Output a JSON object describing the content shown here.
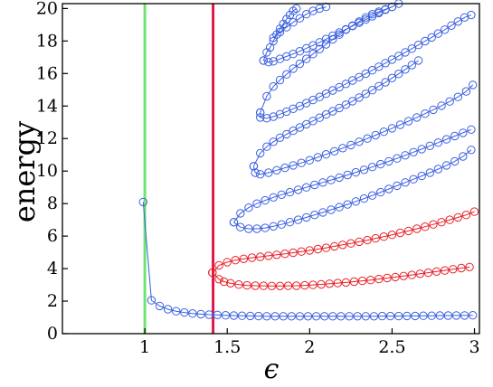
{
  "chart_data": {
    "type": "line",
    "xlabel": "ϵ",
    "ylabel": "energy",
    "xlim": [
      0.5,
      3.03
    ],
    "ylim": [
      0,
      20.3
    ],
    "x_ticks": [
      1,
      1.5,
      2,
      2.5,
      3
    ],
    "x_tick_labels": [
      "1",
      "1.5",
      "2",
      "2.5",
      "3"
    ],
    "y_ticks": [
      0,
      2,
      4,
      6,
      8,
      10,
      12,
      14,
      16,
      18,
      20
    ],
    "y_tick_labels": [
      "0",
      "2",
      "4",
      "6",
      "8",
      "10",
      "12",
      "14",
      "16",
      "18",
      "20"
    ],
    "grid": false,
    "legend": "none",
    "colors": {
      "blue": "#3b5fe0",
      "red": "#e8202a",
      "green": "#6fe36f",
      "crimson": "#e0184a"
    },
    "vertical_lines": [
      {
        "x": 1.0,
        "color": "#6fe36f"
      },
      {
        "x": 1.414,
        "color": "#e0184a"
      }
    ],
    "series": [
      {
        "color": "#3b5fe0",
        "x": [
          0.99,
          1.04,
          1.09,
          1.14,
          1.19,
          1.24,
          1.29,
          1.34,
          1.39,
          1.44,
          1.49,
          1.54,
          1.59,
          1.64,
          1.69,
          1.74,
          1.79,
          1.84,
          1.89,
          1.94,
          1.99,
          2.04,
          2.09,
          2.14,
          2.19,
          2.24,
          2.29,
          2.34,
          2.39,
          2.44,
          2.49,
          2.54,
          2.59,
          2.64,
          2.69,
          2.74,
          2.79,
          2.84,
          2.89,
          2.94,
          2.99
        ],
        "y": [
          8.1,
          2.05,
          1.7,
          1.5,
          1.38,
          1.3,
          1.24,
          1.2,
          1.17,
          1.15,
          1.13,
          1.11,
          1.1,
          1.09,
          1.08,
          1.07,
          1.07,
          1.07,
          1.07,
          1.07,
          1.07,
          1.07,
          1.07,
          1.07,
          1.07,
          1.07,
          1.07,
          1.07,
          1.07,
          1.08,
          1.08,
          1.08,
          1.09,
          1.09,
          1.1,
          1.1,
          1.11,
          1.11,
          1.12,
          1.12,
          1.13
        ]
      },
      {
        "color": "#e8202a",
        "x": [
          1.41,
          1.45,
          1.48,
          1.52,
          1.57,
          1.62,
          1.67,
          1.72,
          1.77,
          1.82,
          1.87,
          1.92,
          1.97,
          2.02,
          2.07,
          2.12,
          2.17,
          2.22,
          2.27,
          2.32,
          2.37,
          2.42,
          2.47,
          2.52,
          2.57,
          2.62,
          2.67,
          2.72,
          2.77,
          2.82,
          2.87,
          2.92,
          2.97
        ],
        "y": [
          3.75,
          3.35,
          3.2,
          3.1,
          3.02,
          2.97,
          2.95,
          2.94,
          2.93,
          2.93,
          2.94,
          2.95,
          2.97,
          3.0,
          3.03,
          3.07,
          3.11,
          3.15,
          3.2,
          3.25,
          3.3,
          3.36,
          3.42,
          3.48,
          3.54,
          3.61,
          3.68,
          3.75,
          3.82,
          3.89,
          3.96,
          4.03,
          4.1
        ]
      },
      {
        "color": "#e8202a",
        "x": [
          1.41,
          1.45,
          1.5,
          1.55,
          1.6,
          1.65,
          1.7,
          1.75,
          1.8,
          1.85,
          1.9,
          1.95,
          2.0,
          2.05,
          2.1,
          2.15,
          2.2,
          2.25,
          2.3,
          2.35,
          2.4,
          2.45,
          2.5,
          2.55,
          2.6,
          2.65,
          2.7,
          2.75,
          2.8,
          2.85,
          2.9,
          2.95,
          3.0
        ],
        "y": [
          3.75,
          4.2,
          4.4,
          4.52,
          4.6,
          4.67,
          4.73,
          4.79,
          4.85,
          4.91,
          4.98,
          5.05,
          5.12,
          5.2,
          5.28,
          5.37,
          5.46,
          5.55,
          5.65,
          5.75,
          5.86,
          5.97,
          6.08,
          6.2,
          6.32,
          6.45,
          6.58,
          6.72,
          6.86,
          7.0,
          7.15,
          7.3,
          7.5
        ]
      },
      {
        "color": "#3b5fe0",
        "x": [
          1.54,
          1.58,
          1.63,
          1.68,
          1.73,
          1.78,
          1.83,
          1.88,
          1.93,
          1.98,
          2.03,
          2.08,
          2.13,
          2.18,
          2.23,
          2.28,
          2.33,
          2.38,
          2.43,
          2.48,
          2.53,
          2.58,
          2.63,
          2.68,
          2.73,
          2.78,
          2.83,
          2.88,
          2.93,
          2.98
        ],
        "y": [
          6.85,
          6.55,
          6.45,
          6.45,
          6.5,
          6.6,
          6.72,
          6.86,
          7.0,
          7.15,
          7.3,
          7.46,
          7.62,
          7.78,
          7.95,
          8.13,
          8.31,
          8.5,
          8.7,
          8.9,
          9.1,
          9.3,
          9.5,
          9.7,
          9.9,
          10.12,
          10.35,
          10.6,
          10.9,
          11.3
        ]
      },
      {
        "color": "#3b5fe0",
        "x": [
          1.54,
          1.58,
          1.63,
          1.68,
          1.73,
          1.78,
          1.83,
          1.88,
          1.93,
          1.98,
          2.03,
          2.08,
          2.13,
          2.18,
          2.23,
          2.28,
          2.33,
          2.38,
          2.43,
          2.48,
          2.53,
          2.58,
          2.63,
          2.68,
          2.73,
          2.78,
          2.83,
          2.88,
          2.93,
          2.98
        ],
        "y": [
          6.85,
          7.4,
          7.75,
          8.0,
          8.2,
          8.38,
          8.55,
          8.7,
          8.85,
          9.0,
          9.15,
          9.3,
          9.45,
          9.6,
          9.76,
          9.92,
          10.08,
          10.25,
          10.42,
          10.6,
          10.78,
          10.97,
          11.16,
          11.35,
          11.55,
          11.75,
          11.95,
          12.15,
          12.35,
          12.55
        ]
      },
      {
        "color": "#3b5fe0",
        "x": [
          1.66,
          1.67,
          1.7,
          1.75,
          1.8,
          1.85,
          1.9,
          1.95,
          2.0,
          2.05,
          2.1,
          2.15,
          2.2,
          2.25,
          2.3,
          2.35,
          2.4,
          2.45,
          2.5,
          2.55,
          2.6,
          2.65,
          2.7,
          2.75,
          2.8,
          2.85,
          2.9,
          2.95,
          2.99
        ],
        "y": [
          10.3,
          9.9,
          9.8,
          9.9,
          10.05,
          10.2,
          10.35,
          10.5,
          10.67,
          10.85,
          11.03,
          11.22,
          11.41,
          11.6,
          11.8,
          12.0,
          12.21,
          12.42,
          12.63,
          12.85,
          13.07,
          13.3,
          13.53,
          13.77,
          14.02,
          14.28,
          14.56,
          14.9,
          15.3
        ]
      },
      {
        "color": "#3b5fe0",
        "x": [
          1.66,
          1.7,
          1.74,
          1.78,
          1.82,
          1.86,
          1.9,
          1.94,
          1.98,
          2.02,
          2.06,
          2.1,
          2.14,
          2.18,
          2.22,
          2.26,
          2.3,
          2.34,
          2.38,
          2.42,
          2.46,
          2.5,
          2.54,
          2.58,
          2.62,
          2.66
        ],
        "y": [
          10.3,
          11.1,
          11.5,
          11.8,
          12.05,
          12.27,
          12.48,
          12.68,
          12.88,
          13.08,
          13.28,
          13.48,
          13.68,
          13.88,
          14.08,
          14.3,
          14.52,
          14.75,
          14.98,
          15.22,
          15.46,
          15.72,
          15.98,
          16.25,
          16.52,
          16.8
        ]
      },
      {
        "color": "#3b5fe0",
        "x": [
          1.7,
          1.7,
          1.74,
          1.78,
          1.82,
          1.86,
          1.9,
          1.94,
          1.98,
          2.02,
          2.06,
          2.1,
          2.14,
          2.18,
          2.22,
          2.26,
          2.3,
          2.34,
          2.38,
          2.42,
          2.46,
          2.5,
          2.54,
          2.58,
          2.62,
          2.66,
          2.7,
          2.74,
          2.78,
          2.82,
          2.86,
          2.9,
          2.94,
          2.98
        ],
        "y": [
          13.6,
          13.3,
          13.25,
          13.35,
          13.5,
          13.66,
          13.83,
          14.0,
          14.18,
          14.37,
          14.56,
          14.76,
          14.96,
          15.16,
          15.36,
          15.57,
          15.78,
          15.99,
          16.2,
          16.42,
          16.64,
          16.86,
          17.08,
          17.3,
          17.53,
          17.76,
          17.99,
          18.22,
          18.46,
          18.7,
          18.95,
          19.2,
          19.45,
          19.6
        ]
      },
      {
        "color": "#3b5fe0",
        "x": [
          1.7,
          1.74,
          1.78,
          1.82,
          1.86,
          1.9,
          1.94,
          1.98,
          2.02,
          2.06,
          2.1,
          2.14,
          2.18,
          2.22,
          2.26,
          2.3,
          2.34,
          2.38,
          2.42,
          2.46,
          2.5
        ],
        "y": [
          13.6,
          14.6,
          15.2,
          15.6,
          15.95,
          16.3,
          16.6,
          16.9,
          17.2,
          17.5,
          17.8,
          18.1,
          18.4,
          18.7,
          18.95,
          19.2,
          19.45,
          19.65,
          19.8,
          19.95,
          20.1
        ]
      },
      {
        "color": "#3b5fe0",
        "x": [
          1.72,
          1.75,
          1.78,
          1.82,
          1.86,
          1.9,
          1.94,
          1.98,
          2.02,
          2.06,
          2.1,
          2.14,
          2.18,
          2.22,
          2.26,
          2.3,
          2.34,
          2.38,
          2.42,
          2.46,
          2.5,
          2.54,
          2.58,
          2.62,
          2.66,
          2.7
        ],
        "y": [
          16.8,
          16.7,
          16.75,
          16.9,
          17.05,
          17.2,
          17.37,
          17.55,
          17.73,
          17.92,
          18.12,
          18.32,
          18.52,
          18.72,
          18.92,
          19.12,
          19.32,
          19.52,
          19.72,
          19.92,
          20.1,
          20.3,
          20.4,
          20.4,
          20.4,
          20.4
        ]
      },
      {
        "color": "#3b5fe0",
        "x": [
          1.72,
          1.74,
          1.76,
          1.78,
          1.8,
          1.82,
          1.84,
          1.86,
          1.88,
          1.9,
          1.92
        ],
        "y": [
          16.8,
          17.3,
          17.6,
          18.0,
          18.4,
          18.75,
          19.05,
          19.35,
          19.6,
          19.85,
          20.0
        ]
      },
      {
        "color": "#3b5fe0",
        "x": [
          1.78,
          1.82,
          1.86,
          1.9,
          1.94,
          1.98,
          2.02,
          2.06,
          2.1
        ],
        "y": [
          18.2,
          18.55,
          18.85,
          19.15,
          19.4,
          19.65,
          19.85,
          20.0,
          20.1
        ]
      }
    ]
  }
}
